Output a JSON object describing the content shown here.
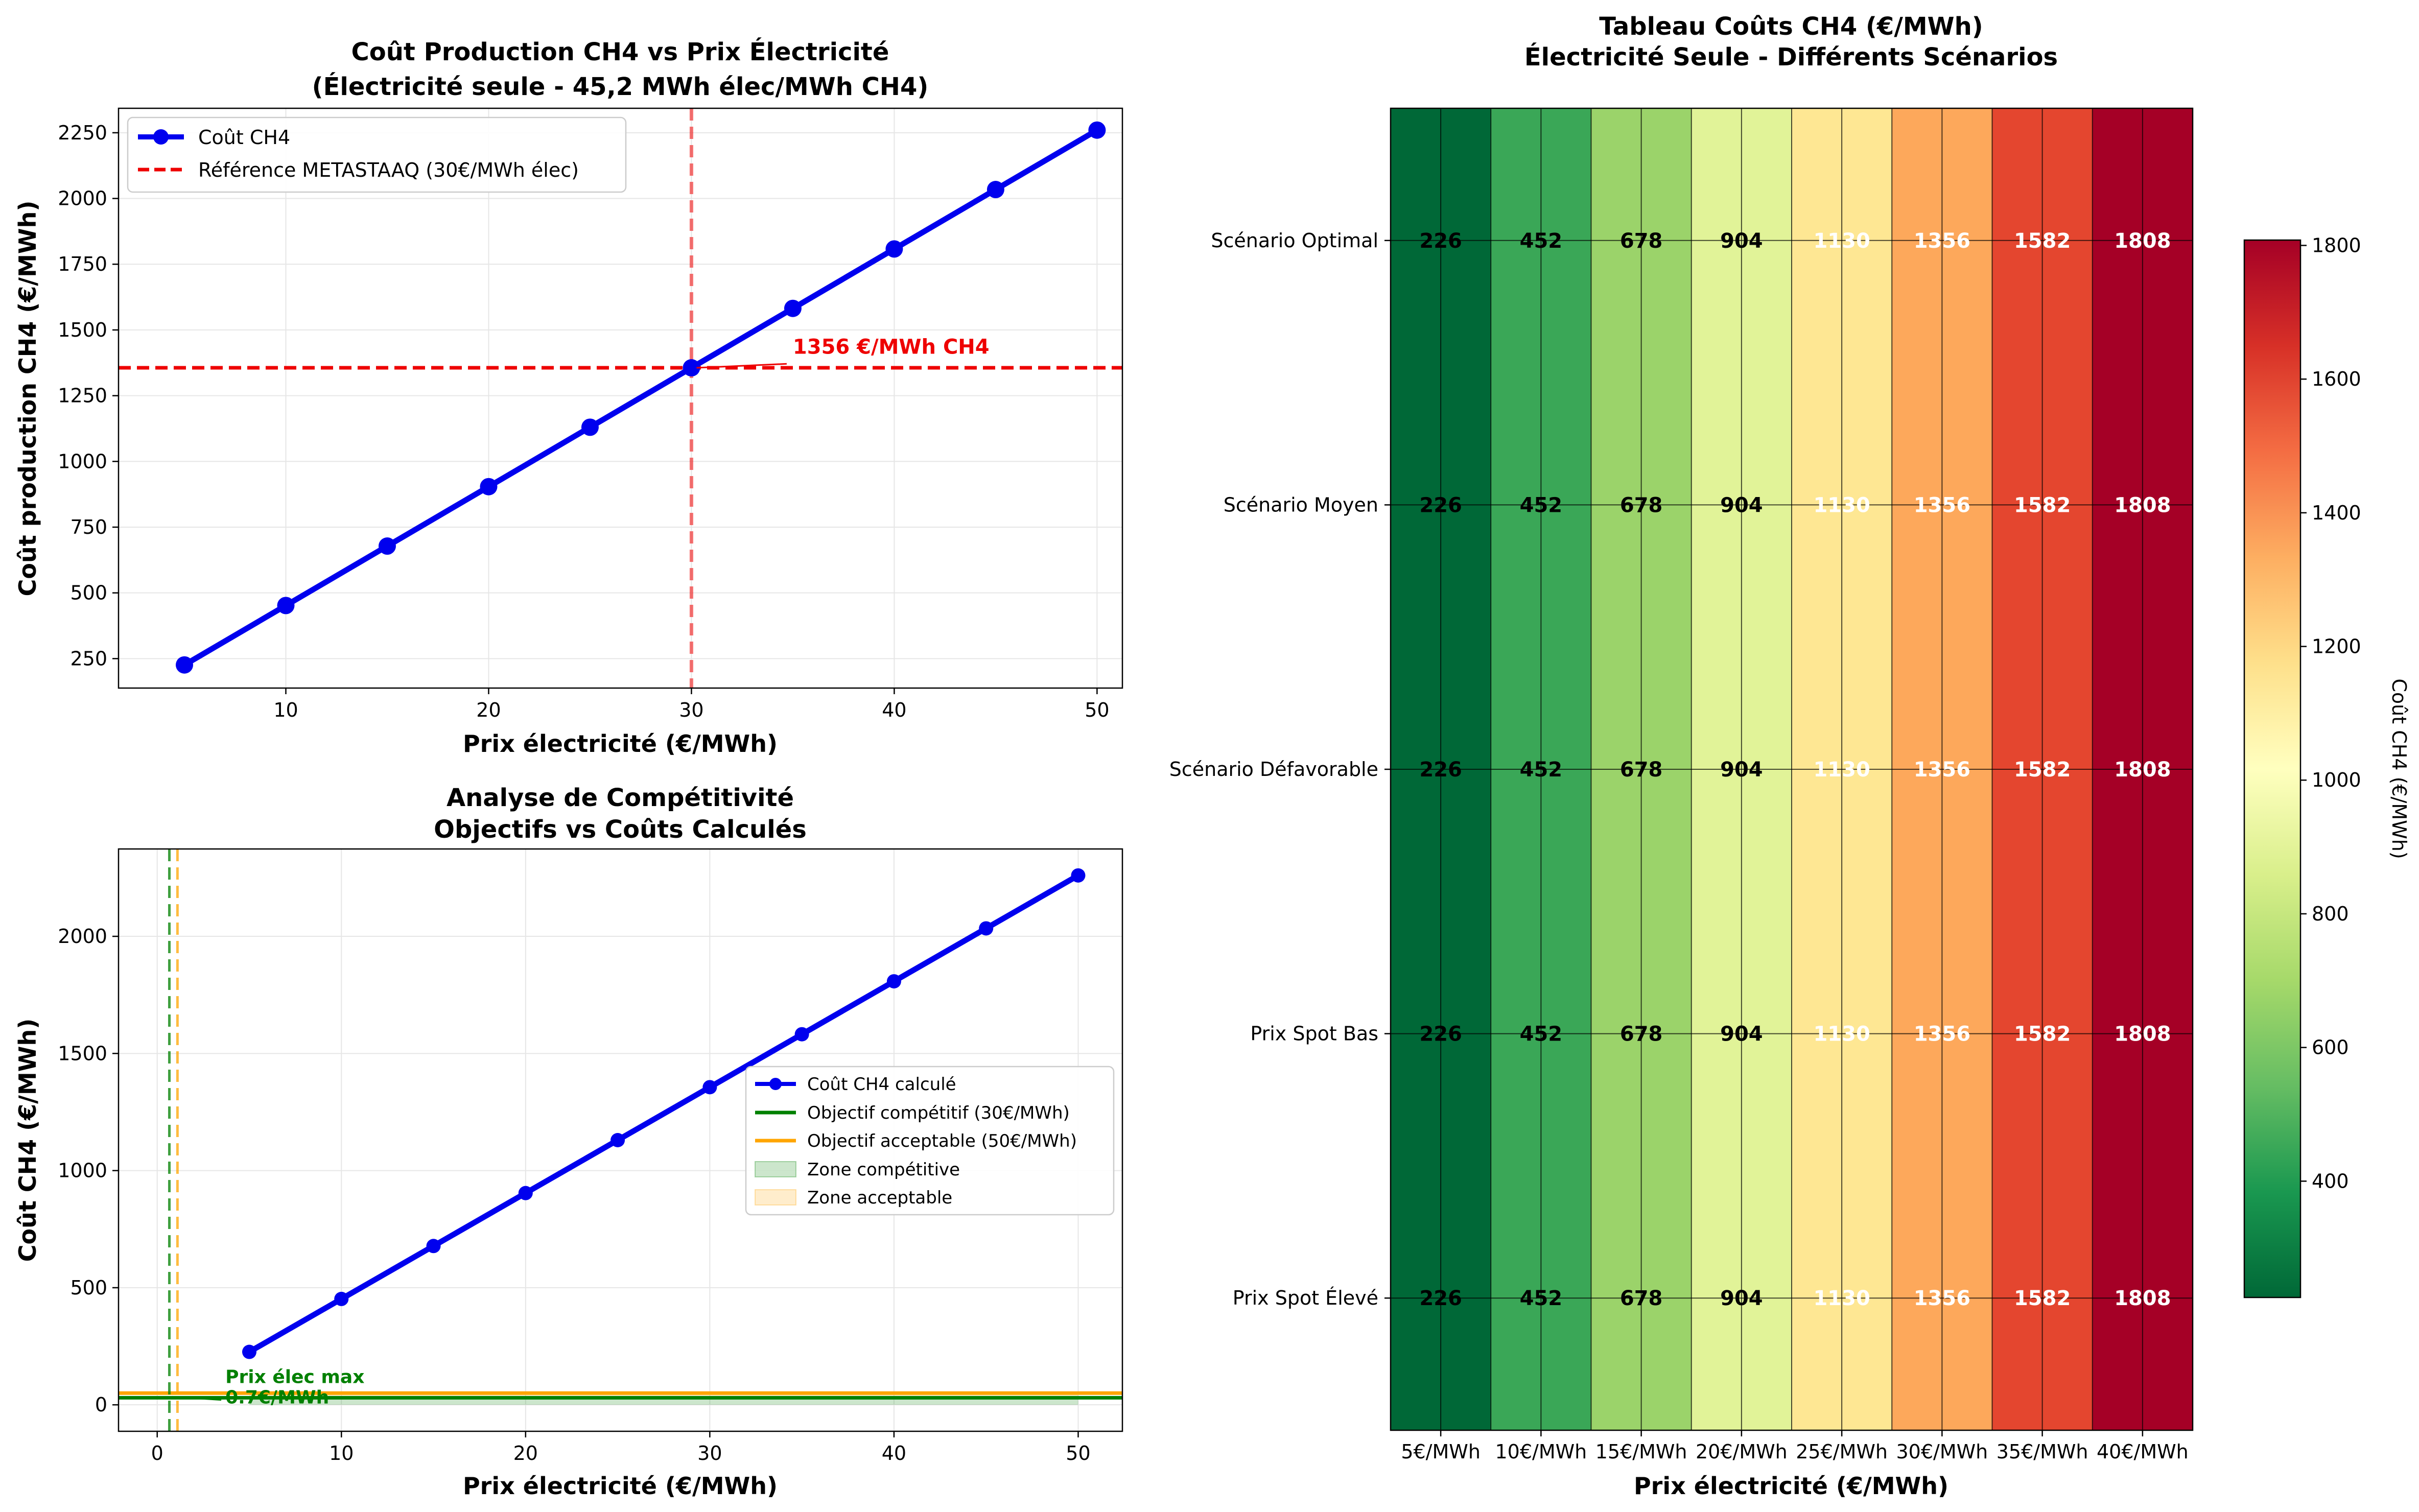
{
  "chart_data": [
    {
      "type": "line",
      "title": "Coût Production CH4 vs Prix Électricité",
      "subtitle": "(Électricité seule - 45,2 MWh élec/MWh CH4)",
      "xlabel": "Prix électricité (€/MWh)",
      "ylabel": "Coût production CH4 (€/MWh)",
      "xlim": [
        1.75,
        51.25
      ],
      "ylim": [
        138,
        2343
      ],
      "xticks": [
        10,
        20,
        30,
        40,
        50
      ],
      "yticks": [
        250,
        500,
        750,
        1000,
        1250,
        1500,
        1750,
        2000,
        2250
      ],
      "grid": true,
      "legend_position": "top-left",
      "series": [
        {
          "name": "Coût CH4",
          "color": "#0000ee",
          "x": [
            5,
            10,
            15,
            20,
            25,
            30,
            35,
            40,
            45,
            50
          ],
          "y": [
            226,
            452,
            678,
            904,
            1130,
            1356,
            1582,
            1808,
            2034,
            2260
          ]
        }
      ],
      "reference_lines": [
        {
          "name": "Référence METASTAAQ (30€/MWh élec)",
          "axis": "y",
          "value": 1356,
          "color": "#ee0000",
          "style": "dashed"
        },
        {
          "axis": "x",
          "value": 30,
          "color": "#ee0000",
          "style": "dashed"
        }
      ],
      "annotation": {
        "text": "1356 €/MWh CH4",
        "x": 30,
        "y": 1356,
        "text_x": 35,
        "text_y": 1410,
        "color": "#ee0000"
      }
    },
    {
      "type": "line",
      "title": "Analyse de Compétitivité",
      "subtitle": "Objectifs vs Coûts Calculés",
      "xlabel": "Prix électricité (€/MWh)",
      "ylabel": "Coût CH4 (€/MWh)",
      "xlim": [
        -2.1,
        52.4
      ],
      "ylim": [
        -113,
        2373
      ],
      "xticks": [
        0,
        10,
        20,
        30,
        40,
        50
      ],
      "yticks": [
        0,
        500,
        1000,
        1500,
        2000
      ],
      "grid": true,
      "legend_position": "center-right",
      "series": [
        {
          "name": "Coût CH4 calculé",
          "color": "#0000ee",
          "x": [
            5,
            10,
            15,
            20,
            25,
            30,
            35,
            40,
            45,
            50
          ],
          "y": [
            226,
            452,
            678,
            904,
            1130,
            1356,
            1582,
            1808,
            2034,
            2260
          ]
        }
      ],
      "reference_lines": [
        {
          "name": "Objectif compétitif (30€/MWh)",
          "axis": "y",
          "value": 30,
          "color": "#008000",
          "style": "solid"
        },
        {
          "name": "Objectif acceptable (50€/MWh)",
          "axis": "y",
          "value": 50,
          "color": "#ffa500",
          "style": "solid"
        },
        {
          "axis": "x",
          "value": 0.66,
          "color": "#008000",
          "style": "dashed"
        },
        {
          "axis": "x",
          "value": 1.1,
          "color": "#ffa500",
          "style": "dashed"
        }
      ],
      "zones": [
        {
          "name": "Zone compétitive",
          "color": "#008000",
          "x_from": 5,
          "x_to": 50,
          "y_from": 0,
          "y_to": 30
        },
        {
          "name": "Zone acceptable",
          "color": "#ffa500",
          "x_from": 5,
          "x_to": 50,
          "y_from": 30,
          "y_to": 50
        }
      ],
      "annotation": {
        "text_line1": "Prix élec max",
        "text_line2": "0.7€/MWh",
        "x": 0.7,
        "y": 30,
        "text_x": 3.7,
        "text_y": 60,
        "color": "#008000"
      }
    },
    {
      "type": "heatmap",
      "title": "Tableau Coûts CH4 (€/MWh)",
      "subtitle": "Électricité Seule - Différents Scénarios",
      "xlabel": "Prix électricité (€/MWh)",
      "ylabel": "",
      "x_categories": [
        "5€/MWh",
        "10€/MWh",
        "15€/MWh",
        "20€/MWh",
        "25€/MWh",
        "30€/MWh",
        "35€/MWh",
        "40€/MWh"
      ],
      "y_categories": [
        "Scénario Optimal",
        "Scénario Moyen",
        "Scénario Défavorable",
        "Prix Spot Bas",
        "Prix Spot Élevé"
      ],
      "values": [
        [
          226,
          452,
          678,
          904,
          1130,
          1356,
          1582,
          1808
        ],
        [
          226,
          452,
          678,
          904,
          1130,
          1356,
          1582,
          1808
        ],
        [
          226,
          452,
          678,
          904,
          1130,
          1356,
          1582,
          1808
        ],
        [
          226,
          452,
          678,
          904,
          1130,
          1356,
          1582,
          1808
        ],
        [
          226,
          452,
          678,
          904,
          1130,
          1356,
          1582,
          1808
        ]
      ],
      "column_colors": [
        "#006837",
        "#3aa757",
        "#9bd36a",
        "#e1f398",
        "#fee793",
        "#fda85b",
        "#e4462f",
        "#a50026"
      ],
      "label_colors": [
        "#000000",
        "#000000",
        "#000000",
        "#000000",
        "#ffffff",
        "#ffffff",
        "#ffffff",
        "#ffffff"
      ],
      "colorbar": {
        "label": "Coût CH4 (€/MWh)",
        "range": [
          226,
          1808
        ],
        "ticks": [
          400,
          600,
          800,
          1000,
          1200,
          1400,
          1600,
          1800
        ],
        "colormap": "RdYlGn_r"
      }
    }
  ]
}
